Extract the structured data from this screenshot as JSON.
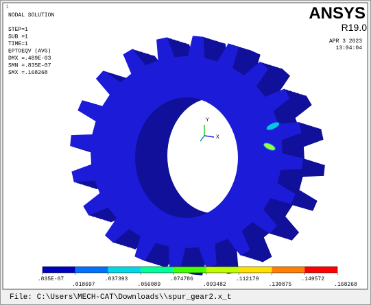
{
  "window": {
    "number": "1",
    "title": "NODAL SOLUTION",
    "info": [
      "STEP=1",
      "SUB =1",
      "TIME=1",
      "EPTOEQV (AVG)",
      "DMX =.489E-03",
      "SMN =.835E-07",
      "SMX =.168268"
    ],
    "brand": "ANSYS",
    "version": "R19.0",
    "date": "APR  3 2023",
    "time": "13:04:04",
    "triad": {
      "y": "Y",
      "x": "X"
    },
    "legend": {
      "colors": [
        "#0000c0",
        "#0070ff",
        "#00d8e8",
        "#00ff98",
        "#48ff00",
        "#c0ff00",
        "#ffe000",
        "#ff8000",
        "#ff0000"
      ],
      "labels": [
        ".835E-07",
        ".018697",
        ".037393",
        ".056089",
        ".074786",
        ".093482",
        ".112179",
        ".130875",
        ".149572",
        ".168268"
      ]
    },
    "file": "File: C:\\Users\\MECH-CAT\\Downloads\\\\spur_gear2.x_t"
  }
}
